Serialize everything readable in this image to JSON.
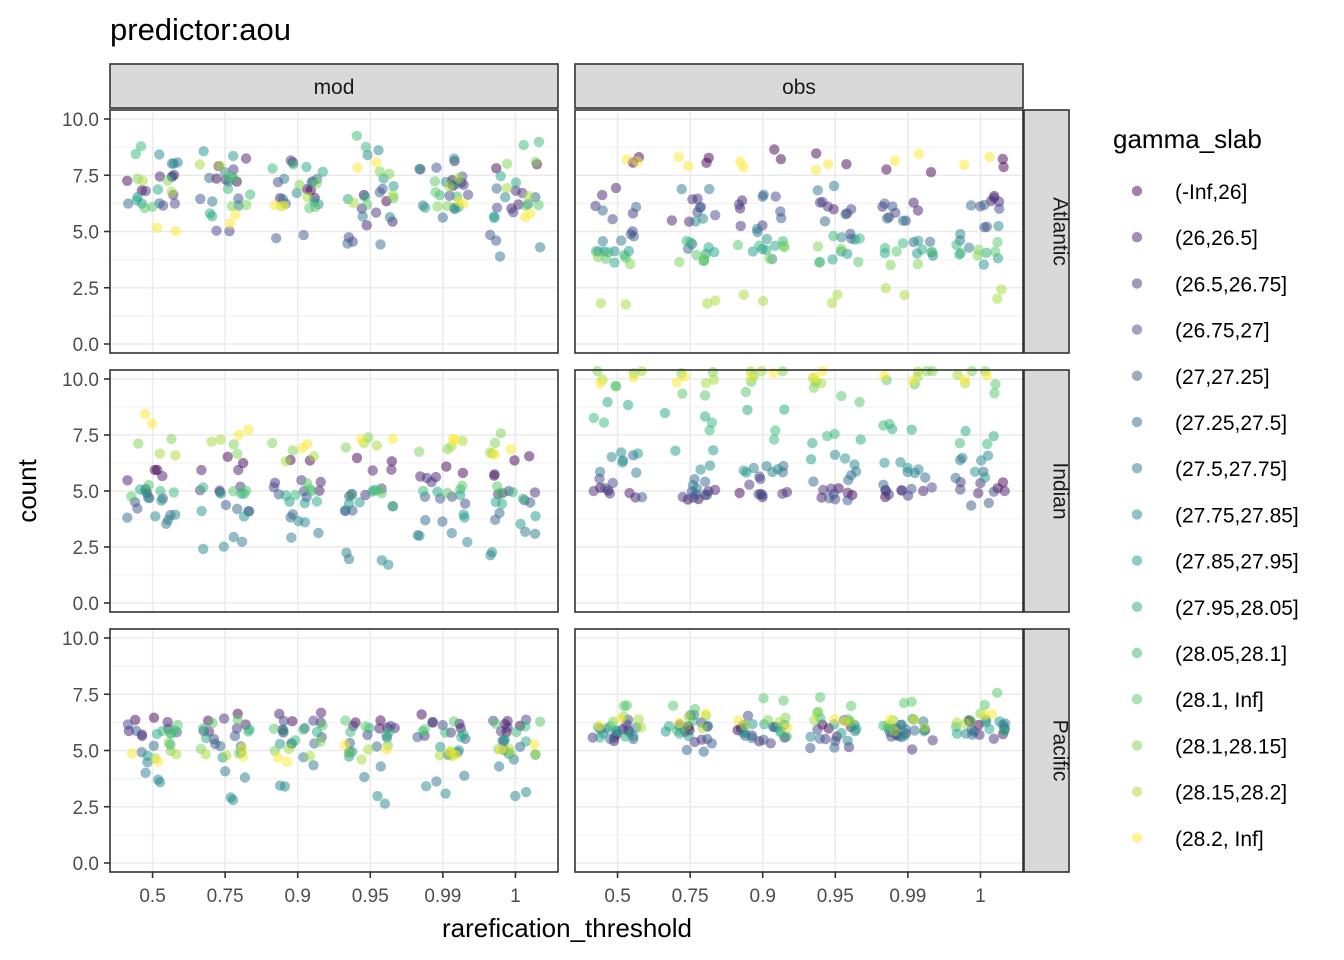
{
  "chart_data": {
    "type": "scatter",
    "title": "predictor:aou",
    "xlabel": "rarefication_threshold",
    "ylabel": "count",
    "x_categories": [
      "0.5",
      "0.75",
      "0.9",
      "0.95",
      "0.99",
      "1"
    ],
    "y_ticks": [
      "0.0",
      "2.5",
      "5.0",
      "7.5",
      "10.0"
    ],
    "ylim": [
      0,
      10
    ],
    "columns": [
      "mod",
      "obs"
    ],
    "rows": [
      "Atlantic",
      "Indian",
      "Pacific"
    ],
    "legend": {
      "title": "gamma_slab",
      "placement": "right",
      "entries": [
        {
          "label": "(-Inf,26]",
          "color": "#440154"
        },
        {
          "label": "(26,26.5]",
          "color": "#481A6C"
        },
        {
          "label": "(26.5,26.75]",
          "color": "#472F7D"
        },
        {
          "label": "(26.75,27]",
          "color": "#414487"
        },
        {
          "label": "(27,27.25]",
          "color": "#39568C"
        },
        {
          "label": "(27.25,27.5]",
          "color": "#31688E"
        },
        {
          "label": "(27.5,27.75]",
          "color": "#2A788E"
        },
        {
          "label": "(27.75,27.85]",
          "color": "#23888E"
        },
        {
          "label": "(27.85,27.95]",
          "color": "#1F988B"
        },
        {
          "label": "(27.95,28.05]",
          "color": "#22A884"
        },
        {
          "label": "(28.05,28.1]",
          "color": "#35B779"
        },
        {
          "label": "(28.1, Inf]",
          "color": "#54C568"
        },
        {
          "label": "(28.1,28.15]",
          "color": "#7AD151"
        },
        {
          "label": "(28.15,28.2]",
          "color": "#A5DB36"
        },
        {
          "label": "(28.2, Inf]",
          "color": "#FDE725"
        }
      ]
    },
    "point_alpha": 0.5,
    "x_jitter": 0.35,
    "panel_profiles": [
      {
        "column": "mod",
        "row": "Atlantic",
        "counts_by_group": [
          [
            7.0,
            7.2,
            6.8,
            6.5,
            7.3,
            7.8
          ],
          [
            7.4,
            8.0,
            6.6,
            5.4,
            7.9,
            6.2
          ],
          [
            6.9,
            7.5,
            8.2,
            6.0,
            7.1,
            6.7
          ],
          [
            6.3,
            5.1,
            7.0,
            4.8,
            6.8,
            5.8
          ],
          [
            7.2,
            6.6,
            5.0,
            6.9,
            7.6,
            4.6
          ],
          [
            6.0,
            7.1,
            6.4,
            4.3,
            5.9,
            6.8
          ],
          [
            7.8,
            6.2,
            7.4,
            5.6,
            6.1,
            4.0
          ],
          [
            8.2,
            7.6,
            6.9,
            8.6,
            7.2,
            6.5
          ],
          [
            6.4,
            8.4,
            6.1,
            7.3,
            8.0,
            5.9
          ],
          [
            6.6,
            5.7,
            7.7,
            6.6,
            5.8,
            7.4
          ],
          [
            8.7,
            6.9,
            8.1,
            9.0,
            6.4,
            8.8
          ],
          [
            6.1,
            7.3,
            5.8,
            6.2,
            7.0,
            6.0
          ],
          [
            7.5,
            6.0,
            7.1,
            7.7,
            6.3,
            7.9
          ],
          [
            7.0,
            8.2,
            6.3,
            6.5,
            7.3,
            6.8
          ],
          [
            5.0,
            5.6,
            6.1,
            8.0,
            6.5,
            5.7
          ]
        ]
      },
      {
        "column": "obs",
        "row": "Atlantic",
        "counts_by_group": [
          [
            8.3,
            8.1,
            8.4,
            8.2,
            7.9,
            8.0
          ],
          [
            6.9,
            5.6,
            6.3,
            5.8,
            6.0,
            6.3
          ],
          [
            6.0,
            6.5,
            5.5,
            6.2,
            5.9,
            6.6
          ],
          [
            5.3,
            5.9,
            6.4,
            6.1,
            5.6,
            5.9
          ],
          [
            4.6,
            6.2,
            5.8,
            4.7,
            6.4,
            5.0
          ],
          [
            5.9,
            4.3,
            6.7,
            5.6,
            4.5,
            6.1
          ],
          [
            4.8,
            6.8,
            5.2,
            7.1,
            5.5,
            4.4
          ],
          [
            4.3,
            5.4,
            4.0,
            4.6,
            4.2,
            5.0
          ],
          [
            4.1,
            3.9,
            4.4,
            4.0,
            4.3,
            3.7
          ],
          [
            3.9,
            4.2,
            4.1,
            3.8,
            4.0,
            4.1
          ],
          [
            4.2,
            4.5,
            4.3,
            4.6,
            4.4,
            4.2
          ],
          [
            4.0,
            3.8,
            4.2,
            3.9,
            4.1,
            4.4
          ],
          [
            3.8,
            3.7,
            4.0,
            4.1,
            3.6,
            3.9
          ],
          [
            2.0,
            1.9,
            2.2,
            2.0,
            2.4,
            2.3
          ],
          [
            8.0,
            8.2,
            8.1,
            7.9,
            8.3,
            8.1
          ]
        ]
      },
      {
        "column": "mod",
        "row": "Indian",
        "counts_by_group": [
          [
            6.0,
            6.3,
            6.1,
            6.2,
            6.0,
            6.4
          ],
          [
            5.6,
            5.9,
            5.3,
            5.7,
            5.5,
            5.8
          ],
          [
            5.2,
            5.0,
            5.4,
            5.1,
            5.3,
            4.9
          ],
          [
            4.8,
            5.2,
            4.9,
            5.0,
            4.7,
            5.1
          ],
          [
            4.5,
            4.3,
            4.6,
            4.2,
            4.8,
            4.4
          ],
          [
            3.9,
            4.0,
            3.8,
            4.1,
            3.7,
            4.0
          ],
          [
            3.5,
            2.8,
            3.2,
            2.2,
            3.3,
            2.9
          ],
          [
            3.8,
            2.5,
            3.6,
            2.0,
            2.9,
            2.3
          ],
          [
            4.5,
            3.9,
            4.7,
            4.4,
            4.1,
            3.8
          ],
          [
            5.0,
            4.6,
            4.8,
            5.2,
            4.9,
            4.7
          ],
          [
            4.8,
            5.1,
            4.9,
            4.6,
            5.0,
            4.8
          ],
          [
            5.0,
            4.8,
            5.2,
            4.9,
            5.1,
            5.0
          ],
          [
            7.2,
            6.9,
            7.0,
            7.1,
            6.8,
            7.3
          ],
          [
            6.8,
            7.0,
            6.6,
            6.9,
            7.1,
            6.7
          ],
          [
            8.3,
            7.5,
            6.9,
            7.2,
            7.1,
            6.6
          ]
        ]
      },
      {
        "column": "obs",
        "row": "Indian",
        "counts_by_group": [
          [
            5.0,
            4.9,
            5.1,
            5.0,
            4.8,
            5.1
          ],
          [
            4.9,
            5.2,
            5.0,
            4.7,
            5.0,
            4.9
          ],
          [
            5.0,
            4.8,
            5.1,
            5.0,
            4.9,
            5.2
          ],
          [
            5.3,
            5.0,
            5.4,
            4.9,
            5.2,
            5.1
          ],
          [
            4.9,
            4.6,
            5.0,
            4.5,
            4.8,
            4.4
          ],
          [
            6.3,
            5.6,
            6.0,
            5.3,
            5.5,
            5.8
          ],
          [
            5.8,
            5.4,
            6.1,
            5.9,
            5.6,
            6.2
          ],
          [
            6.7,
            6.2,
            5.8,
            6.4,
            6.1,
            6.5
          ],
          [
            6.4,
            6.6,
            6.0,
            6.2,
            6.3,
            5.9
          ],
          [
            9.0,
            8.2,
            8.7,
            7.0,
            7.8,
            7.5
          ],
          [
            8.2,
            8.0,
            7.6,
            7.3,
            8.1,
            6.9
          ],
          [
            9.8,
            9.4,
            9.6,
            9.2,
            9.7,
            9.5
          ],
          [
            10.3,
            10.1,
            10.2,
            9.9,
            10.2,
            10.3
          ],
          [
            10.2,
            10.0,
            10.3,
            10.1,
            10.2,
            10.0
          ],
          [
            10.1,
            10.0,
            10.2,
            10.3,
            10.1,
            10.2
          ]
        ]
      },
      {
        "column": "mod",
        "row": "Pacific",
        "counts_by_group": [
          [
            6.2,
            6.5,
            6.1,
            6.3,
            6.4,
            6.0
          ],
          [
            6.1,
            6.0,
            6.4,
            5.9,
            6.2,
            6.3
          ],
          [
            5.9,
            6.2,
            6.0,
            6.1,
            5.8,
            6.0
          ],
          [
            6.0,
            5.8,
            6.2,
            5.9,
            6.1,
            6.2
          ],
          [
            5.6,
            5.4,
            5.7,
            5.5,
            5.6,
            5.3
          ],
          [
            5.2,
            5.0,
            5.4,
            5.1,
            5.0,
            5.2
          ],
          [
            4.2,
            3.8,
            4.5,
            4.0,
            3.7,
            4.4
          ],
          [
            3.5,
            3.0,
            3.3,
            2.8,
            3.2,
            2.9
          ],
          [
            5.0,
            4.8,
            5.1,
            4.9,
            5.0,
            4.7
          ],
          [
            5.5,
            5.8,
            5.6,
            5.9,
            5.7,
            5.4
          ],
          [
            5.9,
            6.0,
            5.7,
            6.1,
            5.8,
            6.0
          ],
          [
            6.0,
            6.2,
            5.9,
            6.1,
            6.0,
            6.1
          ],
          [
            5.1,
            4.9,
            5.2,
            5.0,
            4.8,
            5.1
          ],
          [
            4.9,
            4.7,
            5.0,
            4.8,
            4.6,
            4.9
          ],
          [
            4.6,
            5.0,
            4.8,
            5.2,
            4.7,
            5.0
          ]
        ]
      },
      {
        "column": "obs",
        "row": "Pacific",
        "counts_by_group": [
          [
            6.0,
            5.9,
            6.1,
            6.0,
            5.8,
            6.1
          ],
          [
            5.7,
            5.9,
            5.6,
            5.8,
            5.9,
            5.7
          ],
          [
            5.5,
            5.3,
            5.6,
            5.4,
            5.2,
            5.5
          ],
          [
            6.2,
            6.0,
            6.3,
            6.1,
            5.9,
            6.2
          ],
          [
            5.8,
            5.5,
            5.7,
            5.3,
            5.6,
            5.9
          ],
          [
            5.6,
            5.2,
            5.9,
            5.4,
            5.7,
            5.8
          ],
          [
            6.1,
            6.3,
            5.8,
            6.0,
            6.2,
            6.1
          ],
          [
            5.9,
            6.1,
            6.0,
            5.7,
            6.2,
            6.0
          ],
          [
            6.1,
            5.8,
            6.2,
            6.0,
            5.9,
            6.1
          ],
          [
            5.8,
            6.0,
            5.9,
            6.2,
            6.1,
            6.0
          ],
          [
            6.2,
            6.1,
            6.0,
            6.3,
            6.2,
            6.1
          ],
          [
            7.0,
            6.8,
            7.1,
            7.2,
            6.9,
            7.3
          ],
          [
            6.4,
            6.3,
            6.5,
            6.6,
            6.2,
            6.5
          ],
          [
            6.1,
            6.2,
            6.0,
            6.3,
            6.1,
            6.4
          ],
          [
            6.3,
            6.4,
            6.2,
            6.5,
            6.3,
            6.6
          ]
        ]
      }
    ]
  }
}
